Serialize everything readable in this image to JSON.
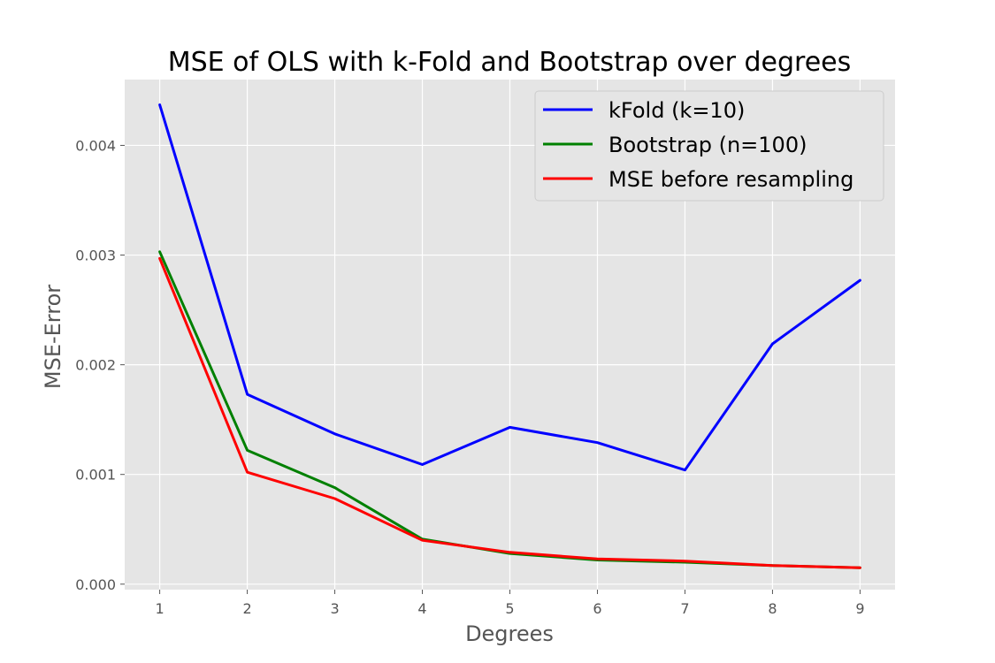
{
  "chart_data": {
    "type": "line",
    "title": "MSE of OLS with k-Fold and Bootstrap over degrees",
    "xlabel": "Degrees",
    "ylabel": "MSE-Error",
    "x": [
      1,
      2,
      3,
      4,
      5,
      6,
      7,
      8,
      9
    ],
    "xlim": [
      0.6,
      9.4
    ],
    "ylim": [
      -5e-05,
      0.0046
    ],
    "xticks": [
      "1",
      "2",
      "3",
      "4",
      "5",
      "6",
      "7",
      "8",
      "9"
    ],
    "yticks": [
      "0.000",
      "0.001",
      "0.002",
      "0.003",
      "0.004"
    ],
    "grid": true,
    "legend_position": "top-right",
    "background": "#e5e5e5",
    "series": [
      {
        "name": "kFold (k=10)",
        "color": "#0000ff",
        "values": [
          0.00437,
          0.00173,
          0.00137,
          0.00109,
          0.00143,
          0.00129,
          0.00104,
          0.00219,
          0.00277
        ]
      },
      {
        "name": "Bootstrap (n=100)",
        "color": "#008000",
        "values": [
          0.00303,
          0.00122,
          0.00088,
          0.00041,
          0.00028,
          0.00022,
          0.0002,
          0.00017,
          0.00015
        ]
      },
      {
        "name": "MSE before resampling",
        "color": "#ff0000",
        "values": [
          0.00297,
          0.00102,
          0.00078,
          0.0004,
          0.00029,
          0.00023,
          0.00021,
          0.00017,
          0.00015
        ]
      }
    ]
  }
}
